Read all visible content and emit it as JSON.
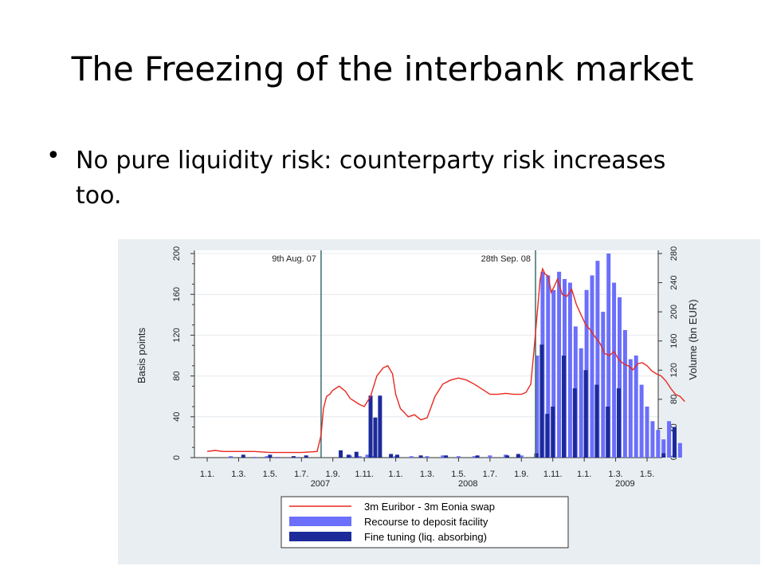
{
  "slide": {
    "title": "The Freezing of the interbank market",
    "bullet": "No pure liquidity risk: counterparty risk increases too."
  },
  "chart_data": {
    "type": "bar",
    "xlabel": "",
    "ylabel": "Basis points",
    "y2label": "Volume (bn EUR)",
    "ylim": [
      0,
      200
    ],
    "y2lim": [
      0,
      280
    ],
    "yticks": [
      0,
      40,
      80,
      120,
      160,
      200
    ],
    "y2ticks": [
      0,
      40,
      80,
      120,
      160,
      200,
      240,
      280
    ],
    "xticks": [
      "1.1.",
      "1.3.",
      "1.5.",
      "1.7.",
      "1.9.",
      "1.11.",
      "1.1.",
      "1.3.",
      "1.5.",
      "1.7.",
      "1.9.",
      "1.11.",
      "1.1.",
      "1.3.",
      "1.5."
    ],
    "year_labels": [
      {
        "label": "2007",
        "tick_index": 3.6
      },
      {
        "label": "2008",
        "tick_index": 8.3
      },
      {
        "label": "2009",
        "tick_index": 13.3
      }
    ],
    "grid": true,
    "legend_position": "bottom",
    "annotations": [
      {
        "label": "9th Aug. 07",
        "x": 7.25
      },
      {
        "label": "28th Sep. 08",
        "x": 20.9
      }
    ],
    "series": [
      {
        "name": "3m Euribor - 3m Eonia swap",
        "type": "line",
        "axis": "left",
        "color": "#e8281e",
        "x": [
          0,
          0.5,
          1,
          2,
          3,
          4,
          5,
          6,
          7,
          7.25,
          7.4,
          7.6,
          7.8,
          8,
          8.4,
          8.8,
          9.1,
          9.4,
          9.7,
          10,
          10.4,
          10.8,
          11.2,
          11.5,
          11.8,
          12,
          12.3,
          12.5,
          12.8,
          13.2,
          13.6,
          14,
          14.5,
          15,
          15.5,
          16,
          16.5,
          17,
          17.5,
          18,
          18.5,
          19,
          19.5,
          20,
          20.3,
          20.6,
          20.8,
          21,
          21.2,
          21.35,
          21.5,
          21.7,
          21.9,
          22.1,
          22.3,
          22.6,
          22.9,
          23.2,
          23.5,
          23.8,
          24.1,
          24.4,
          24.7,
          25,
          25.3,
          25.6,
          25.9,
          26.2,
          26.5,
          26.8,
          27.1,
          27.4,
          27.7,
          28,
          28.3,
          28.6,
          28.9,
          29.2,
          29.5,
          29.8,
          30.1,
          30.4
        ],
        "values": [
          6,
          7,
          6,
          6,
          6,
          5,
          5,
          5,
          6,
          22,
          48,
          60,
          62,
          66,
          70,
          65,
          58,
          55,
          52,
          50,
          60,
          80,
          88,
          90,
          82,
          62,
          48,
          45,
          40,
          42,
          37,
          39,
          60,
          72,
          76,
          78,
          76,
          72,
          67,
          62,
          62,
          63,
          62,
          62,
          64,
          72,
          105,
          140,
          175,
          185,
          180,
          178,
          162,
          168,
          175,
          160,
          158,
          165,
          150,
          140,
          130,
          125,
          118,
          112,
          102,
          100,
          104,
          96,
          92,
          90,
          86,
          92,
          93,
          90,
          85,
          82,
          80,
          75,
          68,
          62,
          60,
          55
        ]
      },
      {
        "name": "Recourse to deposit facility",
        "type": "bar",
        "axis": "right",
        "color": "#6b6ffa",
        "x": [
          1.5,
          3.0,
          3.8,
          4.5,
          5.8,
          9.1,
          9.7,
          10.2,
          10.6,
          11.0,
          12.0,
          13.0,
          14.0,
          15.0,
          16.0,
          17.0,
          18.0,
          19.0,
          20.0,
          21.0,
          21.35,
          21.7,
          22.05,
          22.4,
          22.75,
          23.1,
          23.45,
          23.8,
          24.15,
          24.5,
          24.85,
          25.2,
          25.55,
          25.9,
          26.25,
          26.6,
          26.95,
          27.3,
          27.65,
          28.0,
          28.35,
          28.7,
          29.05,
          29.4,
          29.75,
          30.1
        ],
        "values": [
          2,
          1,
          2,
          1,
          1,
          3,
          2,
          4,
          2,
          3,
          2,
          2,
          2,
          3,
          2,
          2,
          3,
          4,
          3,
          140,
          255,
          250,
          230,
          255,
          245,
          240,
          180,
          150,
          230,
          250,
          270,
          200,
          280,
          240,
          220,
          175,
          135,
          140,
          100,
          70,
          50,
          38,
          25,
          50,
          40,
          20
        ]
      },
      {
        "name": "Fine tuning (liq. absorbing)",
        "type": "bar",
        "axis": "right",
        "color": "#1c2a9a",
        "x": [
          2.3,
          4.0,
          5.5,
          6.3,
          8.5,
          9.0,
          9.5,
          10.4,
          10.7,
          11.0,
          11.7,
          12.1,
          13.6,
          15.2,
          17.2,
          19.1,
          19.8,
          20.95,
          21.3,
          21.65,
          22.0,
          22.7,
          23.4,
          24.1,
          24.8,
          25.5,
          26.2,
          29.05,
          29.75
        ],
        "values": [
          4,
          4,
          2,
          3,
          10,
          4,
          8,
          85,
          55,
          85,
          5,
          4,
          3,
          3,
          3,
          3,
          5,
          6,
          155,
          60,
          70,
          140,
          95,
          120,
          100,
          70,
          95,
          6,
          42
        ]
      }
    ]
  }
}
